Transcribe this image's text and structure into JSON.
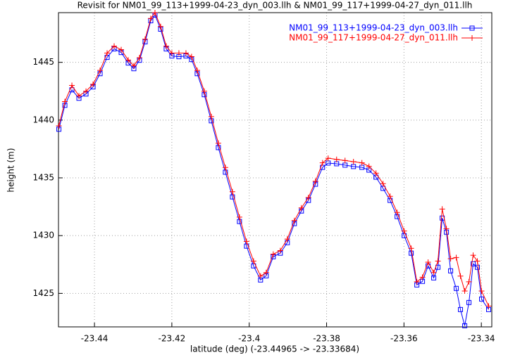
{
  "chart_data": {
    "type": "line",
    "title": "Revisit for NM01_99_113+1999-04-23_dyn_003.llh & NM01_99_117+1999-04-27_dyn_011.llh",
    "x_label": "latitude (deg) (-23.44965 -> -23.33684)",
    "y_label": "height (m)",
    "x": [
      -23.4492,
      -23.44765,
      -23.44583,
      -23.44401,
      -23.44219,
      -23.44037,
      -23.43855,
      -23.43673,
      -23.43491,
      -23.43309,
      -23.43127,
      -23.42982,
      -23.42836,
      -23.42691,
      -23.42545,
      -23.42436,
      -23.4229,
      -23.42145,
      -23.41999,
      -23.41817,
      -23.41635,
      -23.4149,
      -23.41344,
      -23.41162,
      -23.4098,
      -23.40798,
      -23.40616,
      -23.40434,
      -23.40252,
      -23.4007,
      -23.39888,
      -23.39707,
      -23.39561,
      -23.39379,
      -23.39197,
      -23.39015,
      -23.38833,
      -23.38651,
      -23.38469,
      -23.38287,
      -23.38105,
      -23.3796,
      -23.37741,
      -23.37523,
      -23.37305,
      -23.37087,
      -23.36905,
      -23.36723,
      -23.36541,
      -23.36359,
      -23.36177,
      -23.35995,
      -23.35813,
      -23.35667,
      -23.35522,
      -23.35376,
      -23.35231,
      -23.35122,
      -23.35012,
      -23.34903,
      -23.34794,
      -23.34649,
      -23.3454,
      -23.3443,
      -23.34321,
      -23.34212,
      -23.34103,
      -23.33994,
      -23.33812
    ],
    "series": [
      {
        "name": "NM01_99_113+1999-04-23_dyn_003.llh",
        "color": "#0000ff",
        "marker": "square",
        "values": [
          1439.21,
          1441.28,
          1442.62,
          1441.89,
          1442.26,
          1442.87,
          1444.02,
          1445.43,
          1446.16,
          1445.85,
          1444.94,
          1444.45,
          1445.18,
          1446.77,
          1448.6,
          1449.09,
          1447.87,
          1446.16,
          1445.55,
          1445.49,
          1445.55,
          1445.24,
          1444.02,
          1442.2,
          1439.94,
          1437.62,
          1435.49,
          1433.35,
          1431.22,
          1429.09,
          1427.38,
          1426.16,
          1426.52,
          1428.17,
          1428.48,
          1429.39,
          1431.04,
          1432.13,
          1433.05,
          1434.45,
          1435.91,
          1436.28,
          1436.22,
          1436.1,
          1435.98,
          1435.91,
          1435.67,
          1435.06,
          1434.09,
          1433.05,
          1431.65,
          1430.0,
          1428.48,
          1425.73,
          1426.04,
          1427.38,
          1426.34,
          1427.26,
          1431.52,
          1430.3,
          1426.95,
          1425.43,
          1423.6,
          1422.2,
          1424.21,
          1427.56,
          1427.26,
          1424.51,
          1423.6
        ]
      },
      {
        "name": "NM01_99_117+1999-04-27_dyn_011.llh",
        "color": "#ff0000",
        "marker": "plus",
        "values": [
          1439.5,
          1441.6,
          1443.0,
          1442.1,
          1442.5,
          1443.1,
          1444.3,
          1445.8,
          1446.4,
          1446.1,
          1445.2,
          1444.7,
          1445.4,
          1447.0,
          1448.8,
          1449.3,
          1448.1,
          1446.4,
          1445.8,
          1445.8,
          1445.8,
          1445.5,
          1444.3,
          1442.5,
          1440.3,
          1438.0,
          1435.9,
          1433.8,
          1431.6,
          1429.5,
          1427.8,
          1426.5,
          1426.8,
          1428.4,
          1428.7,
          1429.7,
          1431.3,
          1432.4,
          1433.3,
          1434.7,
          1436.3,
          1436.7,
          1436.6,
          1436.5,
          1436.4,
          1436.3,
          1436.0,
          1435.4,
          1434.5,
          1433.4,
          1432.0,
          1430.4,
          1428.9,
          1426.0,
          1426.4,
          1427.7,
          1426.8,
          1427.8,
          1432.3,
          1430.6,
          1428.0,
          1428.1,
          1426.5,
          1425.2,
          1426.0,
          1428.3,
          1427.8,
          1425.2,
          1423.9
        ]
      }
    ],
    "xlim": [
      -23.4493,
      -23.3373
    ],
    "ylim": [
      1422.1,
      1449.3
    ],
    "xticks": [
      -23.44,
      -23.42,
      -23.4,
      -23.38,
      -23.36,
      -23.34
    ],
    "yticks": [
      1425,
      1430,
      1435,
      1440,
      1445
    ],
    "grid": true,
    "legend": "top-right"
  }
}
